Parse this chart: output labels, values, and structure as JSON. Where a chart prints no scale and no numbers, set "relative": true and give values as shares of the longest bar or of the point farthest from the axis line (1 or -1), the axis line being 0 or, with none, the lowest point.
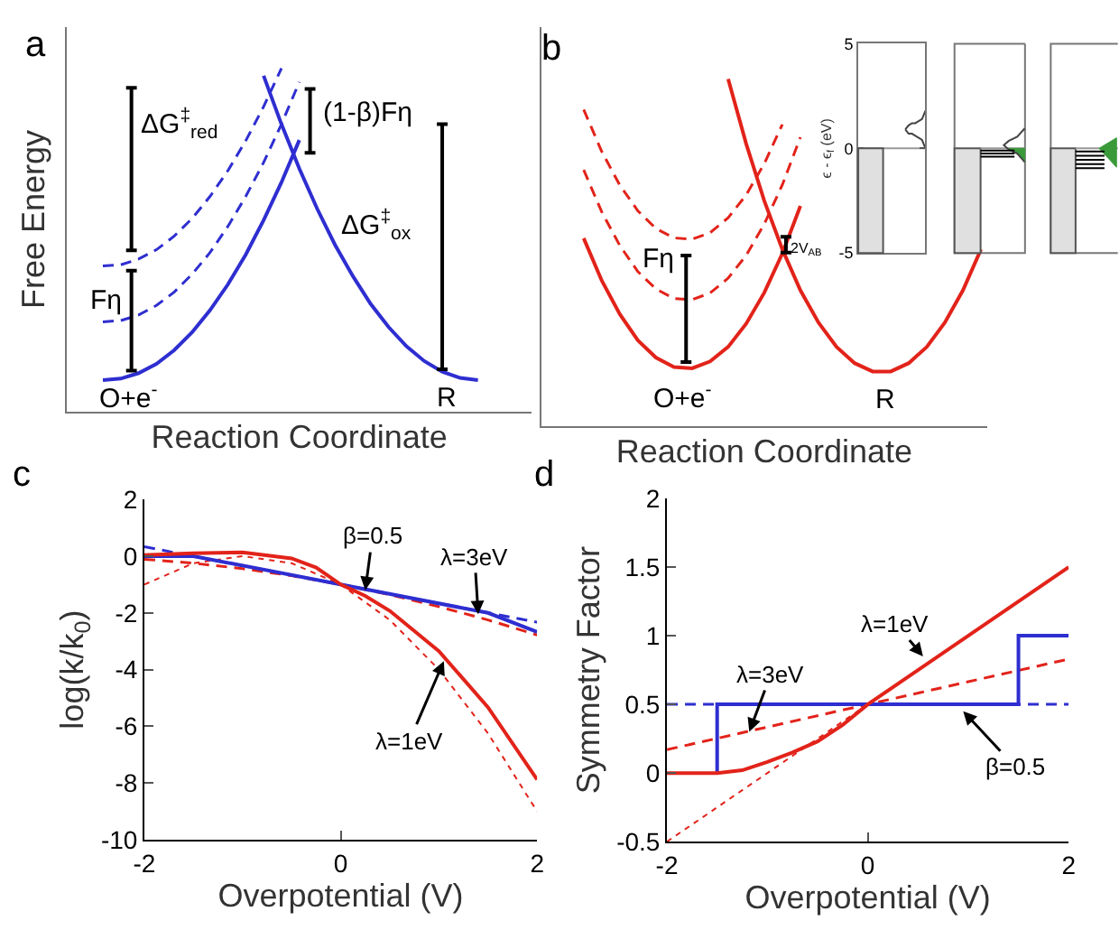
{
  "chart_data": [
    {
      "type": "line",
      "title": "a",
      "relative": true,
      "xlabel": "Reaction Coordinate",
      "ylabel": "Free Energy",
      "categories": [
        null,
        null,
        null,
        null,
        null,
        null,
        null,
        null,
        null,
        null,
        null,
        null,
        null,
        null,
        null,
        null,
        null,
        null,
        null,
        null,
        null,
        null
      ],
      "series": [
        {
          "color": "#2e2ed1",
          "line_style": "solid",
          "values": [
            0.093,
            0.097,
            0.113,
            0.14,
            0.18,
            0.232,
            0.296,
            0.371,
            0.458,
            0.558,
            0.668,
            0.791,
            null,
            null,
            null,
            null,
            null,
            null,
            null,
            null,
            null,
            null
          ]
        },
        {
          "color": "#2e2ed1",
          "line_style": "solid",
          "values": [
            null,
            null,
            null,
            null,
            null,
            null,
            null,
            null,
            null,
            0.978,
            0.837,
            0.708,
            0.591,
            0.486,
            0.395,
            0.314,
            0.247,
            0.191,
            0.148,
            0.117,
            0.099,
            0.093
          ]
        },
        {
          "color": "#2e2ed1",
          "line_style": "dashed",
          "values": [
            0.425,
            0.428,
            0.445,
            0.472,
            0.512,
            0.563,
            0.627,
            0.702,
            0.789,
            0.888,
            1.0,
            null,
            null,
            null,
            null,
            null,
            null,
            null,
            null,
            null,
            null,
            null
          ]
        },
        {
          "color": "#2e2ed1",
          "line_style": "dashed",
          "values": [
            0.262,
            0.266,
            0.282,
            0.31,
            0.349,
            0.401,
            0.464,
            0.54,
            0.627,
            0.726,
            0.837,
            0.96,
            null,
            null,
            null,
            null,
            null,
            null,
            null,
            null,
            null,
            null
          ]
        }
      ],
      "annotations": [
        "ΔG$^{‡}$$_{red}$",
        "Fη",
        "(1-β)Fη",
        "ΔG$^{‡}$$_{ox}$",
        "O+e$^{-}$",
        "R"
      ]
    },
    {
      "type": "line",
      "title": "b",
      "relative": true,
      "xlabel": "Reaction Coordinate",
      "categories": [
        null,
        null,
        null,
        null,
        null,
        null,
        null,
        null,
        null,
        null,
        null,
        null,
        null,
        null,
        null,
        null,
        null,
        null,
        null,
        null,
        null,
        null,
        null
      ],
      "series": [
        {
          "color": "#e2231a",
          "line_style": "solid",
          "values": [
            0.541,
            0.419,
            0.322,
            0.247,
            0.197,
            0.17,
            0.166,
            0.186,
            0.228,
            0.295,
            0.384,
            0.497,
            0.634,
            null,
            null,
            null,
            null,
            null,
            null,
            null,
            null,
            null,
            null
          ]
        },
        {
          "color": "#e2231a",
          "line_style": "solid",
          "values": [
            null,
            null,
            null,
            null,
            null,
            null,
            null,
            null,
            1.0,
            0.813,
            0.649,
            0.509,
            0.391,
            0.298,
            0.228,
            0.181,
            0.157,
            0.157,
            0.181,
            0.228,
            0.298,
            0.391,
            0.509
          ]
        },
        {
          "color": "#e2231a",
          "line_style": "dashed",
          "values": [
            0.738,
            0.617,
            0.52,
            0.445,
            0.395,
            0.367,
            0.364,
            0.383,
            0.426,
            0.492,
            0.582,
            0.695,
            0.832,
            null,
            null,
            null,
            null,
            null,
            null,
            null,
            null,
            null,
            null
          ]
        },
        {
          "color": "#e2231a",
          "line_style": "dashed",
          "values": [
            0.912,
            0.791,
            0.694,
            0.62,
            0.569,
            0.542,
            0.538,
            0.557,
            0.6,
            0.666,
            0.756,
            0.869,
            null,
            null,
            null,
            null,
            null,
            null,
            null,
            null,
            null,
            null,
            null
          ]
        }
      ],
      "annotations": [
        "Fη",
        "2V$_{AB}$",
        "O+e$^{-}$",
        "R"
      ]
    },
    {
      "type": "line",
      "ylabel": "ϵ - ϵ$_{f}$ (eV)",
      "ylim": [
        -5,
        5
      ],
      "yticks": [
        -5,
        0,
        5
      ],
      "tick_labels": "y",
      "categories": [
        null,
        null,
        null,
        null,
        null,
        null,
        null,
        null,
        null,
        null,
        null,
        null,
        null,
        null,
        null,
        null,
        null,
        null,
        null,
        null,
        null
      ],
      "series": [
        {
          "color": "#999999",
          "line_style": "solid",
          "values": [
            0,
            0,
            0,
            0,
            0,
            0,
            0,
            0,
            0,
            0,
            0,
            0,
            0,
            0,
            0,
            0,
            0,
            0,
            0,
            0,
            0
          ]
        },
        {
          "color": "#444444",
          "line_style": "solid",
          "values": [
            null,
            null,
            null,
            null,
            null,
            null,
            null,
            null,
            null,
            null,
            null,
            null,
            null,
            null,
            0.9,
            1.1,
            1.2,
            1.2,
            1.3,
            1.4,
            1.8
          ]
        },
        {
          "color": "#444444",
          "line_style": "solid",
          "values": [
            null,
            null,
            null,
            null,
            null,
            null,
            null,
            null,
            null,
            null,
            null,
            null,
            null,
            null,
            0.9,
            0.7,
            0.7,
            0.6,
            0.5,
            0.4,
            0.0
          ]
        }
      ]
    },
    {
      "type": "line",
      "title": "c",
      "xlabel": "Overpotential (V)",
      "ylabel": "log(k/k$_{0}$)",
      "xlim": [
        -2,
        2
      ],
      "xticks": [
        -2,
        0,
        2
      ],
      "ylim": [
        -10,
        2
      ],
      "yticks": [
        -10,
        -8,
        -6,
        -4,
        -2,
        0,
        2
      ],
      "series": [
        {
          "color": "#2e2ed1",
          "line_style": "dashed",
          "x": [
            -2,
            2
          ],
          "values": [
            0.33,
            -2.33
          ]
        },
        {
          "color": "#e2231a",
          "line_style": "dotted",
          "x": [
            -2,
            -1.5,
            -1,
            -0.5,
            0,
            0.5,
            1,
            1.5,
            2
          ],
          "values": [
            -1,
            -0.25,
            0,
            -0.25,
            -1,
            -2.25,
            -4,
            -6.25,
            -9
          ]
        },
        {
          "color": "#e2231a",
          "line_style": "dashed",
          "x": [
            -2,
            -1.5,
            -1,
            -0.5,
            0,
            0.5,
            1,
            1.5,
            2
          ],
          "values": [
            -0.11,
            -0.25,
            -0.44,
            -0.69,
            -1,
            -1.36,
            -1.78,
            -2.25,
            -2.78
          ]
        },
        {
          "color": "#2e2ed1",
          "line_style": "solid",
          "x": [
            -2,
            -1.5,
            1.5,
            2
          ],
          "values": [
            0,
            0,
            -2,
            -2.67
          ]
        },
        {
          "color": "#e2231a",
          "line_style": "solid",
          "x": [
            -2,
            -1.5,
            -1,
            -0.5,
            -0.25,
            0,
            0.25,
            0.5,
            1,
            1.5,
            2
          ],
          "values": [
            0.04,
            0.1,
            0.13,
            -0.08,
            -0.4,
            -1,
            -1.4,
            -1.93,
            -3.35,
            -5.33,
            -7.88
          ]
        }
      ],
      "annotations": [
        {
          "text": "β=0.5",
          "x": 0.25,
          "y": -1.2
        },
        {
          "text": "λ=3eV",
          "x": 1.4,
          "y": -2.05
        },
        {
          "text": "λ=1eV",
          "x": 1.05,
          "y": -3.7
        }
      ]
    },
    {
      "type": "line",
      "title": "d",
      "xlabel": "Overpotential (V)",
      "ylabel": "Symmetry Factor",
      "xlim": [
        -2,
        2
      ],
      "xticks": [
        -2,
        0,
        2
      ],
      "ylim": [
        -0.5,
        2
      ],
      "yticks": [
        -0.5,
        0,
        0.5,
        1,
        1.5,
        2
      ],
      "series": [
        {
          "color": "#2e2ed1",
          "line_style": "dashed",
          "x": [
            -2,
            2
          ],
          "values": [
            0.5,
            0.5
          ]
        },
        {
          "color": "#e2231a",
          "line_style": "dotted",
          "x": [
            -2,
            2
          ],
          "values": [
            -0.5,
            1.5
          ]
        },
        {
          "color": "#e2231a",
          "line_style": "dashed",
          "x": [
            -2,
            2
          ],
          "values": [
            0.17,
            0.83
          ]
        },
        {
          "color": "#2e2ed1",
          "line_style": "solid",
          "x": [
            -1.5,
            -1.5,
            1.5,
            1.5,
            2
          ],
          "values": [
            0,
            0.5,
            0.5,
            1,
            1
          ]
        },
        {
          "color": "#e2231a",
          "line_style": "solid",
          "x": [
            -2,
            -1.5,
            -1.25,
            -1,
            -0.75,
            -0.5,
            -0.25,
            0,
            0.5,
            1,
            1.5,
            2
          ],
          "values": [
            0,
            0,
            0.02,
            0.08,
            0.15,
            0.23,
            0.35,
            0.5,
            0.75,
            1.0,
            1.25,
            1.5
          ]
        }
      ],
      "annotations": [
        {
          "text": "λ=1eV",
          "x": 0.55,
          "y": 0.85
        },
        {
          "text": "λ=3eV",
          "x": -1.18,
          "y": 0.3
        },
        {
          "text": "β=0.5",
          "x": 0.95,
          "y": 0.45
        }
      ]
    }
  ]
}
